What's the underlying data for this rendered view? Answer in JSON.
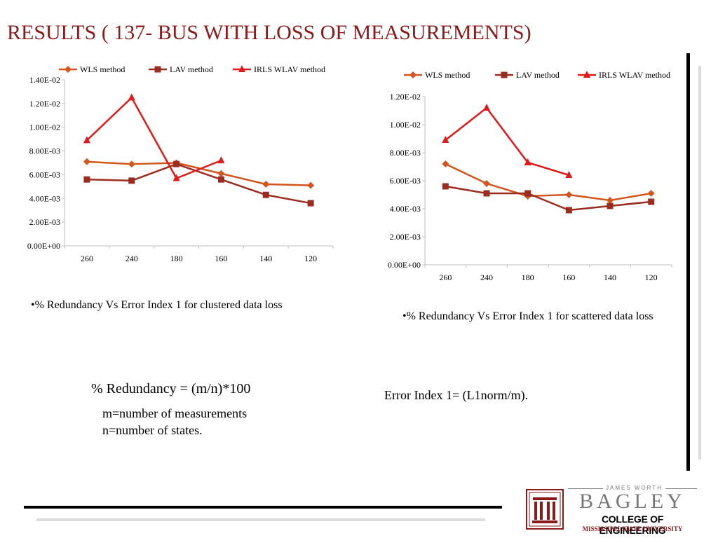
{
  "title": "RESULTS ( 137- BUS WITH LOSS OF MEASUREMENTS)",
  "colors": {
    "title": "#8b1a1a",
    "wls": "#d2561e",
    "lav": "#9b2d20",
    "irls": "#e0191b"
  },
  "chart_data": [
    {
      "type": "line",
      "categories": [
        "260",
        "240",
        "180",
        "160",
        "140",
        "120"
      ],
      "y_ticks": [
        "0.00E+00",
        "2.00E-03",
        "4.00E-03",
        "6.00E-03",
        "8.00E-03",
        "1.00E-02",
        "1.20E-02",
        "1.40E-02"
      ],
      "ylim": [
        0,
        0.014
      ],
      "series": [
        {
          "name": "WLS method",
          "marker": "diamond",
          "color": "#d2561e",
          "values": [
            0.0071,
            0.0069,
            0.007,
            0.0061,
            0.0052,
            0.0051
          ]
        },
        {
          "name": "LAV method",
          "marker": "square",
          "color": "#9b2d20",
          "values": [
            0.0056,
            0.0055,
            0.0069,
            0.0056,
            0.0043,
            0.0036
          ]
        },
        {
          "name": "IRLS WLAV method",
          "marker": "triangle",
          "color": "#e0191b",
          "values": [
            0.0089,
            0.0125,
            0.0057,
            0.0072,
            null,
            null
          ]
        }
      ],
      "legend": "top"
    },
    {
      "type": "line",
      "categories": [
        "260",
        "240",
        "180",
        "160",
        "140",
        "120"
      ],
      "y_ticks": [
        "0.00E+00",
        "2.00E-03",
        "4.00E-03",
        "6.00E-03",
        "8.00E-03",
        "1.00E-02",
        "1.20E-02"
      ],
      "ylim": [
        0,
        0.012
      ],
      "series": [
        {
          "name": "WLS method",
          "marker": "diamond",
          "color": "#d2561e",
          "values": [
            0.0072,
            0.0058,
            0.0049,
            0.005,
            0.0046,
            0.0051
          ]
        },
        {
          "name": "LAV method",
          "marker": "square",
          "color": "#9b2d20",
          "values": [
            0.0056,
            0.0051,
            0.0051,
            0.0039,
            0.0042,
            0.0045
          ]
        },
        {
          "name": "IRLS WLAV method",
          "marker": "triangle",
          "color": "#e0191b",
          "values": [
            0.0089,
            0.0112,
            0.0073,
            0.0064,
            null,
            null
          ]
        }
      ],
      "legend": "top"
    }
  ],
  "captions": {
    "left": "•% Redundancy Vs Error Index 1 for clustered data loss",
    "right": "•% Redundancy Vs Error Index 1 for scattered data loss"
  },
  "formulas": {
    "redundancy": "% Redundancy = (m/n)*100",
    "m_def": "m=number of measurements",
    "n_def": "n=number of states.",
    "error_index": "Error Index 1= (L1norm/m)."
  },
  "logo": {
    "top_text": "JAMES WORTH",
    "main_text": "BAGLEY",
    "college_text": "COLLEGE OF ENGINEERING",
    "university_text": "MISSISSIPPI STATE UNIVERSITY"
  }
}
